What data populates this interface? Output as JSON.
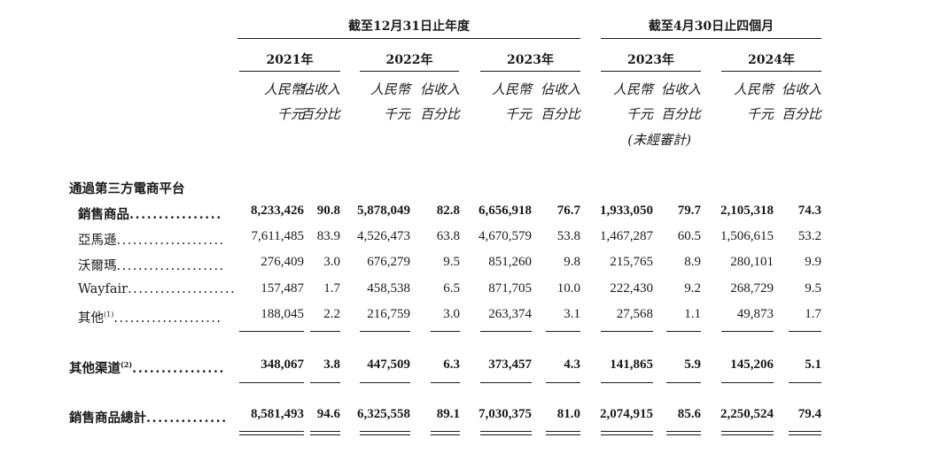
{
  "header": {
    "group_year": "截至12月31日止年度",
    "group_month": "截至4月30日止四個月",
    "years": [
      "2021年",
      "2022年",
      "2023年",
      "2023年",
      "2024年"
    ],
    "unit_rmb_1": "人民幣",
    "unit_rmb_2": "千元",
    "unit_pct_1": "佔收入",
    "unit_pct_2": "百分比",
    "unaudited": "(未經審計)"
  },
  "section_title": "通過第三方電商平台",
  "rows": [
    {
      "label": "銷售商品",
      "sup": "",
      "dots": "................",
      "bold": true,
      "values": [
        "8,233,426",
        "90.8",
        "5,878,049",
        "82.8",
        "6,656,918",
        "76.7",
        "1,933,050",
        "79.7",
        "2,105,318",
        "74.3"
      ]
    },
    {
      "label": "亞馬遜",
      "sup": "",
      "dots": "....................",
      "bold": false,
      "values": [
        "7,611,485",
        "83.9",
        "4,526,473",
        "63.8",
        "4,670,579",
        "53.8",
        "1,467,287",
        "60.5",
        "1,506,615",
        "53.2"
      ]
    },
    {
      "label": "沃爾瑪",
      "sup": "",
      "dots": "....................",
      "bold": false,
      "values": [
        "276,409",
        "3.0",
        "676,279",
        "9.5",
        "851,260",
        "9.8",
        "215,765",
        "8.9",
        "280,101",
        "9.9"
      ]
    },
    {
      "label": "Wayfair",
      "sup": "",
      "dots": "....................",
      "bold": false,
      "values": [
        "157,487",
        "1.7",
        "458,538",
        "6.5",
        "871,705",
        "10.0",
        "222,430",
        "9.2",
        "268,729",
        "9.5"
      ]
    },
    {
      "label": "其他",
      "sup": "(1)",
      "dots": "....................",
      "bold": false,
      "values": [
        "188,045",
        "2.2",
        "216,759",
        "3.0",
        "263,374",
        "3.1",
        "27,568",
        "1.1",
        "49,873",
        "1.7"
      ]
    },
    {
      "label": "其他渠道",
      "sup": "(2)",
      "dots": "................",
      "bold": true,
      "values": [
        "348,067",
        "3.8",
        "447,509",
        "6.3",
        "373,457",
        "4.3",
        "141,865",
        "5.9",
        "145,206",
        "5.1"
      ]
    },
    {
      "label": "銷售商品總計",
      "sup": "",
      "dots": "..............",
      "bold": true,
      "values": [
        "8,581,493",
        "94.6",
        "6,325,558",
        "89.1",
        "7,030,375",
        "81.0",
        "2,074,915",
        "85.6",
        "2,250,524",
        "79.4"
      ]
    }
  ]
}
